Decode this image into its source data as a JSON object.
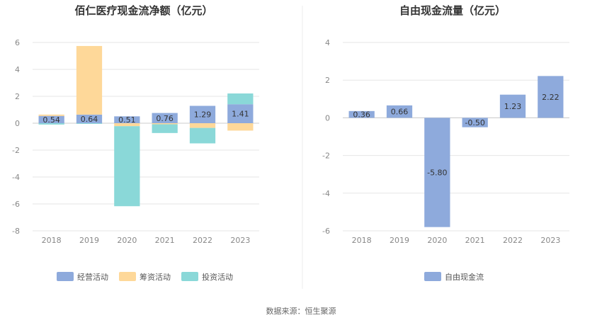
{
  "colors": {
    "operating": "#8eaadc",
    "financing": "#fed899",
    "investing": "#8ad8d8",
    "free_cf": "#8eaadc",
    "grid": "#e6e6e6",
    "axis": "#cccccc",
    "divider": "#eeeeee"
  },
  "source_note": "数据来源：恒生聚源",
  "chart_data": [
    {
      "type": "bar",
      "stacked": true,
      "title": "佰仁医疗现金流净额（亿元）",
      "categories": [
        "2018",
        "2019",
        "2020",
        "2021",
        "2022",
        "2023"
      ],
      "ylim": [
        -8,
        6
      ],
      "yticks": [
        "-8",
        "-6",
        "-4",
        "-2",
        "0",
        "2",
        "4",
        "6"
      ],
      "grid": true,
      "legend_position": "bottom",
      "series": [
        {
          "name": "经营活动",
          "values": [
            0.54,
            0.64,
            0.51,
            0.76,
            1.29,
            1.41
          ],
          "labels": [
            "0.54",
            "0.64",
            "0.51",
            "0.76",
            "1.29",
            "1.41"
          ]
        },
        {
          "name": "筹资活动",
          "values": [
            0.1,
            5.1,
            -0.22,
            -0.08,
            -0.35,
            -0.55
          ]
        },
        {
          "name": "投资活动",
          "values": [
            -0.1,
            -0.05,
            -5.95,
            -0.65,
            -1.15,
            0.8
          ]
        }
      ]
    },
    {
      "type": "bar",
      "title": "自由现金流量（亿元）",
      "categories": [
        "2018",
        "2019",
        "2020",
        "2021",
        "2022",
        "2023"
      ],
      "ylim": [
        -6,
        4
      ],
      "yticks": [
        "-6",
        "-4",
        "-2",
        "0",
        "2",
        "4"
      ],
      "grid": true,
      "legend_position": "bottom",
      "series": [
        {
          "name": "自由现金流",
          "values": [
            0.36,
            0.66,
            -5.8,
            -0.5,
            1.23,
            2.22
          ],
          "labels": [
            "0.36",
            "0.66",
            "-5.80",
            "-0.50",
            "1.23",
            "2.22"
          ]
        }
      ]
    }
  ]
}
